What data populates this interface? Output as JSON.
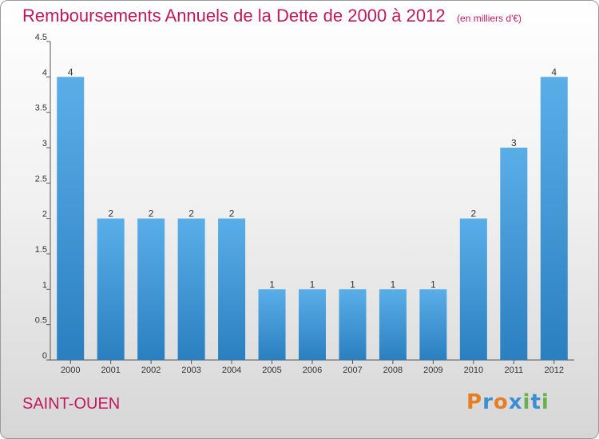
{
  "chart_data": {
    "type": "bar",
    "title": "Remboursements Annuels de la Dette de 2000 à 2012",
    "unit": "(en milliers d'€)",
    "categories": [
      "2000",
      "2001",
      "2002",
      "2003",
      "2004",
      "2005",
      "2006",
      "2007",
      "2008",
      "2009",
      "2010",
      "2011",
      "2012"
    ],
    "values": [
      4,
      2,
      2,
      2,
      2,
      1,
      1,
      1,
      1,
      1,
      2,
      3,
      4
    ],
    "ylim": [
      0,
      4.5
    ],
    "yticks": [
      "0",
      "0.5",
      "1",
      "1.5",
      "2",
      "2.5",
      "3",
      "3.5",
      "4",
      "4.5"
    ],
    "grid": false,
    "bar_color_top": "#5aaee8",
    "bar_color_bottom": "#2a7fc0"
  },
  "footer": {
    "commune": "SAINT-OUEN",
    "logo_text": "Proxiti",
    "logo_colors": [
      "#e67e22",
      "#3a8fd0",
      "#e67e22",
      "#3a8fd0",
      "#6ab04c",
      "#3a8fd0",
      "#6ab04c"
    ]
  }
}
